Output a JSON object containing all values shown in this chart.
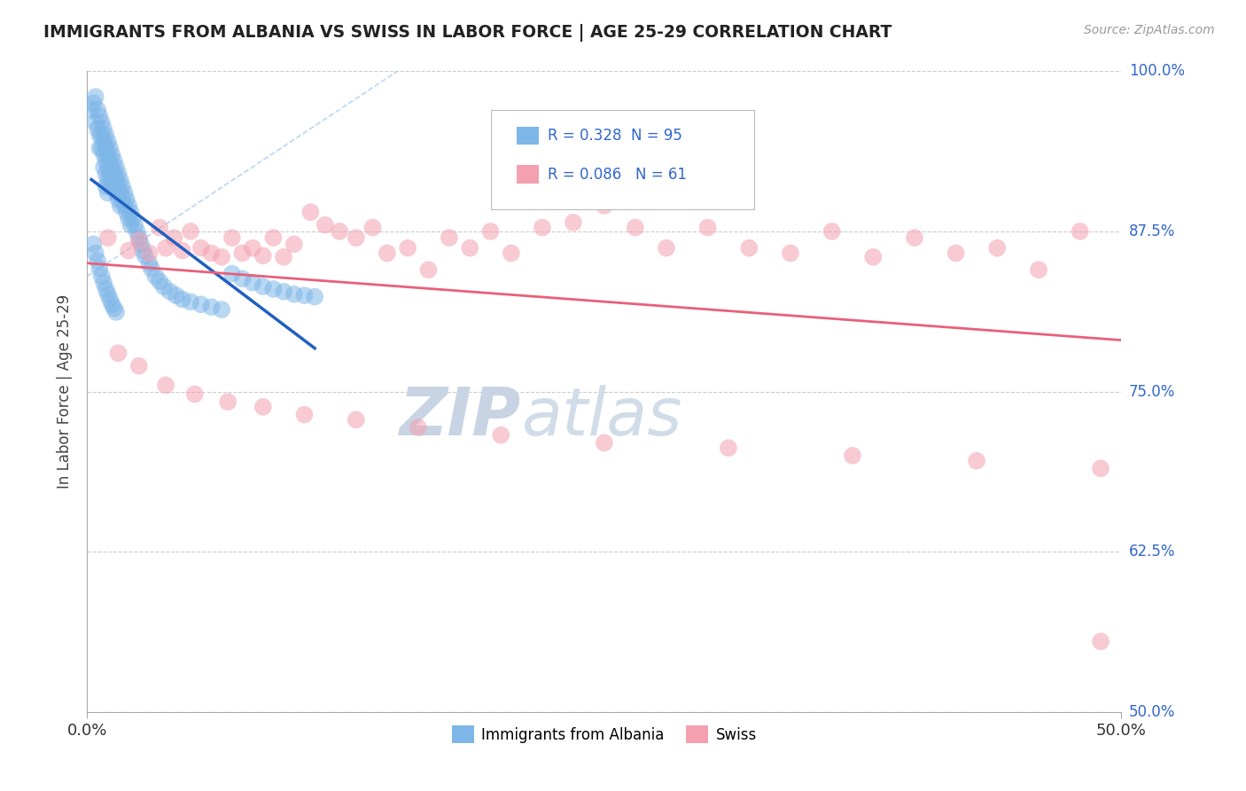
{
  "title": "IMMIGRANTS FROM ALBANIA VS SWISS IN LABOR FORCE | AGE 25-29 CORRELATION CHART",
  "source": "Source: ZipAtlas.com",
  "ylabel": "In Labor Force | Age 25-29",
  "xlim": [
    0.0,
    0.5
  ],
  "ylim": [
    0.5,
    1.0
  ],
  "yticks": [
    0.5,
    0.625,
    0.75,
    0.875,
    1.0
  ],
  "yticklabels": [
    "50.0%",
    "62.5%",
    "75.0%",
    "87.5%",
    "100.0%"
  ],
  "albania_color": "#7EB6E8",
  "swiss_color": "#F4A0B0",
  "albania_R": 0.328,
  "albania_N": 95,
  "swiss_R": 0.086,
  "swiss_N": 61,
  "albania_trend_color": "#2060C0",
  "swiss_trend_color": "#E8607A",
  "watermark_zip": "ZIP",
  "watermark_atlas": "atlas",
  "watermark_color": "#C8D4E4",
  "background_color": "#FFFFFF",
  "grid_color": "#CCCCCC",
  "identity_line_color": "#AACCEE",
  "legend_text_color": "#3366CC",
  "albania_x": [
    0.002,
    0.003,
    0.004,
    0.004,
    0.005,
    0.005,
    0.006,
    0.006,
    0.006,
    0.007,
    0.007,
    0.007,
    0.008,
    0.008,
    0.008,
    0.008,
    0.009,
    0.009,
    0.009,
    0.009,
    0.009,
    0.01,
    0.01,
    0.01,
    0.01,
    0.01,
    0.011,
    0.011,
    0.011,
    0.011,
    0.012,
    0.012,
    0.012,
    0.013,
    0.013,
    0.013,
    0.014,
    0.014,
    0.014,
    0.015,
    0.015,
    0.015,
    0.016,
    0.016,
    0.016,
    0.017,
    0.017,
    0.018,
    0.018,
    0.019,
    0.019,
    0.02,
    0.02,
    0.021,
    0.021,
    0.022,
    0.023,
    0.024,
    0.025,
    0.026,
    0.027,
    0.028,
    0.03,
    0.031,
    0.033,
    0.035,
    0.037,
    0.04,
    0.043,
    0.046,
    0.05,
    0.055,
    0.06,
    0.065,
    0.07,
    0.075,
    0.08,
    0.085,
    0.09,
    0.095,
    0.1,
    0.105,
    0.11,
    0.003,
    0.004,
    0.005,
    0.006,
    0.007,
    0.008,
    0.009,
    0.01,
    0.011,
    0.012,
    0.013,
    0.014
  ],
  "albania_y": [
    0.97,
    0.975,
    0.98,
    0.96,
    0.97,
    0.955,
    0.965,
    0.95,
    0.94,
    0.96,
    0.95,
    0.94,
    0.955,
    0.945,
    0.935,
    0.925,
    0.95,
    0.94,
    0.93,
    0.92,
    0.91,
    0.945,
    0.935,
    0.925,
    0.915,
    0.905,
    0.94,
    0.93,
    0.92,
    0.91,
    0.935,
    0.925,
    0.915,
    0.93,
    0.92,
    0.91,
    0.925,
    0.915,
    0.905,
    0.92,
    0.91,
    0.9,
    0.915,
    0.905,
    0.895,
    0.91,
    0.9,
    0.905,
    0.895,
    0.9,
    0.89,
    0.895,
    0.885,
    0.89,
    0.88,
    0.885,
    0.88,
    0.875,
    0.87,
    0.865,
    0.86,
    0.856,
    0.85,
    0.846,
    0.84,
    0.836,
    0.832,
    0.828,
    0.825,
    0.822,
    0.82,
    0.818,
    0.816,
    0.814,
    0.842,
    0.838,
    0.835,
    0.832,
    0.83,
    0.828,
    0.826,
    0.825,
    0.824,
    0.865,
    0.858,
    0.852,
    0.846,
    0.84,
    0.835,
    0.83,
    0.826,
    0.822,
    0.818,
    0.815,
    0.812
  ],
  "swiss_x": [
    0.01,
    0.02,
    0.025,
    0.03,
    0.035,
    0.038,
    0.042,
    0.046,
    0.05,
    0.055,
    0.06,
    0.065,
    0.07,
    0.075,
    0.08,
    0.085,
    0.09,
    0.095,
    0.1,
    0.108,
    0.115,
    0.122,
    0.13,
    0.138,
    0.145,
    0.155,
    0.165,
    0.175,
    0.185,
    0.195,
    0.205,
    0.22,
    0.235,
    0.25,
    0.265,
    0.28,
    0.3,
    0.32,
    0.34,
    0.36,
    0.38,
    0.4,
    0.42,
    0.44,
    0.46,
    0.48,
    0.015,
    0.025,
    0.038,
    0.052,
    0.068,
    0.085,
    0.105,
    0.13,
    0.16,
    0.2,
    0.25,
    0.31,
    0.37,
    0.43,
    0.49
  ],
  "swiss_y": [
    0.87,
    0.86,
    0.868,
    0.858,
    0.878,
    0.862,
    0.87,
    0.86,
    0.875,
    0.862,
    0.858,
    0.855,
    0.87,
    0.858,
    0.862,
    0.856,
    0.87,
    0.855,
    0.865,
    0.89,
    0.88,
    0.875,
    0.87,
    0.878,
    0.858,
    0.862,
    0.845,
    0.87,
    0.862,
    0.875,
    0.858,
    0.878,
    0.882,
    0.895,
    0.878,
    0.862,
    0.878,
    0.862,
    0.858,
    0.875,
    0.855,
    0.87,
    0.858,
    0.862,
    0.845,
    0.875,
    0.78,
    0.77,
    0.755,
    0.748,
    0.742,
    0.738,
    0.732,
    0.728,
    0.722,
    0.716,
    0.71,
    0.706,
    0.7,
    0.696,
    0.69
  ],
  "swiss_outlier_x": [
    0.49
  ],
  "swiss_outlier_y": [
    0.555
  ]
}
